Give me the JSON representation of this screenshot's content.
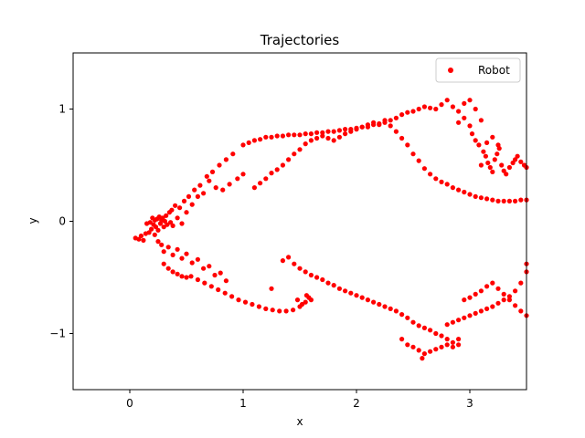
{
  "chart_data": {
    "type": "scatter",
    "title": "Trajectories",
    "xlabel": "x",
    "ylabel": "y",
    "xlim": [
      -0.5,
      3.5
    ],
    "ylim": [
      -1.5,
      1.5
    ],
    "x_ticks": [
      0,
      1,
      2,
      3
    ],
    "x_tick_labels": [
      "0",
      "1",
      "2",
      "3"
    ],
    "y_ticks": [
      -1,
      0,
      1
    ],
    "y_tick_labels": [
      "−1",
      "0",
      "1"
    ],
    "grid": false,
    "legend": {
      "position": "top-right",
      "entries": [
        "Robot"
      ]
    },
    "series": [
      {
        "name": "Robot",
        "color": "#ff0000",
        "marker": "circle",
        "points": [
          [
            0.05,
            -0.15
          ],
          [
            0.08,
            -0.16
          ],
          [
            0.1,
            -0.13
          ],
          [
            0.12,
            -0.17
          ],
          [
            0.14,
            -0.11
          ],
          [
            0.15,
            -0.02
          ],
          [
            0.17,
            -0.1
          ],
          [
            0.18,
            -0.01
          ],
          [
            0.19,
            -0.07
          ],
          [
            0.2,
            0.03
          ],
          [
            0.21,
            -0.03
          ],
          [
            0.22,
            0.01
          ],
          [
            0.23,
            -0.05
          ],
          [
            0.24,
            0.02
          ],
          [
            0.25,
            -0.08
          ],
          [
            0.26,
            0.04
          ],
          [
            0.27,
            -0.02
          ],
          [
            0.28,
            0.01
          ],
          [
            0.29,
            0.03
          ],
          [
            0.3,
            -0.05
          ],
          [
            0.31,
            0.0
          ],
          [
            0.32,
            0.05
          ],
          [
            0.33,
            -0.03
          ],
          [
            0.35,
            0.08
          ],
          [
            0.36,
            -0.01
          ],
          [
            0.37,
            0.1
          ],
          [
            0.38,
            -0.04
          ],
          [
            0.4,
            0.14
          ],
          [
            0.42,
            0.03
          ],
          [
            0.44,
            0.12
          ],
          [
            0.46,
            -0.02
          ],
          [
            0.48,
            0.18
          ],
          [
            0.5,
            0.08
          ],
          [
            0.52,
            0.22
          ],
          [
            0.55,
            0.15
          ],
          [
            0.57,
            0.28
          ],
          [
            0.6,
            0.22
          ],
          [
            0.62,
            0.32
          ],
          [
            0.65,
            0.25
          ],
          [
            0.68,
            0.4
          ],
          [
            0.7,
            0.36
          ],
          [
            0.73,
            0.44
          ],
          [
            0.76,
            0.3
          ],
          [
            0.79,
            0.5
          ],
          [
            0.82,
            0.28
          ],
          [
            0.85,
            0.55
          ],
          [
            0.88,
            0.33
          ],
          [
            0.91,
            0.6
          ],
          [
            0.95,
            0.38
          ],
          [
            1.0,
            0.42
          ],
          [
            0.22,
            -0.12
          ],
          [
            0.25,
            -0.18
          ],
          [
            0.28,
            -0.21
          ],
          [
            0.3,
            -0.27
          ],
          [
            0.34,
            -0.23
          ],
          [
            0.38,
            -0.3
          ],
          [
            0.42,
            -0.25
          ],
          [
            0.46,
            -0.33
          ],
          [
            0.5,
            -0.29
          ],
          [
            0.55,
            -0.37
          ],
          [
            0.6,
            -0.34
          ],
          [
            0.65,
            -0.42
          ],
          [
            0.7,
            -0.4
          ],
          [
            0.75,
            -0.48
          ],
          [
            0.8,
            -0.46
          ],
          [
            0.85,
            -0.53
          ],
          [
            0.3,
            -0.38
          ],
          [
            0.34,
            -0.42
          ],
          [
            0.38,
            -0.45
          ],
          [
            0.42,
            -0.47
          ],
          [
            0.46,
            -0.49
          ],
          [
            0.5,
            -0.5
          ],
          [
            0.54,
            -0.49
          ],
          [
            0.6,
            -0.52
          ],
          [
            0.66,
            -0.55
          ],
          [
            0.72,
            -0.58
          ],
          [
            0.78,
            -0.61
          ],
          [
            0.84,
            -0.64
          ],
          [
            0.9,
            -0.67
          ],
          [
            0.96,
            -0.7
          ],
          [
            1.02,
            -0.72
          ],
          [
            1.08,
            -0.74
          ],
          [
            1.14,
            -0.76
          ],
          [
            1.2,
            -0.78
          ],
          [
            1.26,
            -0.79
          ],
          [
            1.32,
            -0.8
          ],
          [
            1.38,
            -0.8
          ],
          [
            1.44,
            -0.79
          ],
          [
            1.5,
            -0.76
          ],
          [
            1.55,
            -0.72
          ],
          [
            1.58,
            -0.68
          ],
          [
            1.6,
            -0.7
          ],
          [
            1.52,
            -0.74
          ],
          [
            1.56,
            -0.66
          ],
          [
            1.48,
            -0.7
          ],
          [
            1.0,
            0.68
          ],
          [
            1.05,
            0.7
          ],
          [
            1.1,
            0.72
          ],
          [
            1.15,
            0.73
          ],
          [
            1.2,
            0.75
          ],
          [
            1.25,
            0.75
          ],
          [
            1.3,
            0.76
          ],
          [
            1.35,
            0.76
          ],
          [
            1.4,
            0.77
          ],
          [
            1.45,
            0.77
          ],
          [
            1.5,
            0.77
          ],
          [
            1.55,
            0.78
          ],
          [
            1.6,
            0.78
          ],
          [
            1.65,
            0.79
          ],
          [
            1.7,
            0.79
          ],
          [
            1.75,
            0.8
          ],
          [
            1.8,
            0.8
          ],
          [
            1.85,
            0.81
          ],
          [
            1.9,
            0.82
          ],
          [
            1.95,
            0.82
          ],
          [
            2.0,
            0.83
          ],
          [
            2.05,
            0.84
          ],
          [
            2.1,
            0.84
          ],
          [
            2.15,
            0.86
          ],
          [
            2.2,
            0.87
          ],
          [
            2.25,
            0.88
          ],
          [
            2.3,
            0.9
          ],
          [
            2.35,
            0.92
          ],
          [
            2.4,
            0.95
          ],
          [
            2.45,
            0.97
          ],
          [
            2.5,
            0.98
          ],
          [
            2.55,
            1.0
          ],
          [
            2.6,
            1.02
          ],
          [
            2.65,
            1.01
          ],
          [
            2.7,
            1.0
          ],
          [
            2.75,
            1.04
          ],
          [
            2.8,
            1.08
          ],
          [
            2.85,
            1.02
          ],
          [
            2.9,
            0.98
          ],
          [
            2.95,
            1.05
          ],
          [
            3.0,
            1.08
          ],
          [
            3.05,
            1.0
          ],
          [
            1.1,
            0.3
          ],
          [
            1.15,
            0.34
          ],
          [
            1.2,
            0.38
          ],
          [
            1.25,
            0.43
          ],
          [
            1.3,
            0.46
          ],
          [
            1.35,
            0.5
          ],
          [
            1.4,
            0.55
          ],
          [
            1.45,
            0.6
          ],
          [
            1.5,
            0.64
          ],
          [
            1.55,
            0.69
          ],
          [
            1.6,
            0.72
          ],
          [
            1.65,
            0.74
          ],
          [
            1.7,
            0.76
          ],
          [
            1.75,
            0.74
          ],
          [
            1.8,
            0.72
          ],
          [
            1.85,
            0.75
          ],
          [
            1.9,
            0.78
          ],
          [
            1.95,
            0.8
          ],
          [
            2.0,
            0.82
          ],
          [
            2.05,
            0.84
          ],
          [
            2.1,
            0.86
          ],
          [
            2.15,
            0.88
          ],
          [
            2.2,
            0.86
          ],
          [
            2.25,
            0.9
          ],
          [
            2.3,
            0.85
          ],
          [
            2.35,
            0.8
          ],
          [
            2.4,
            0.74
          ],
          [
            2.45,
            0.68
          ],
          [
            2.5,
            0.6
          ],
          [
            2.55,
            0.54
          ],
          [
            2.6,
            0.47
          ],
          [
            2.65,
            0.42
          ],
          [
            2.7,
            0.38
          ],
          [
            2.75,
            0.35
          ],
          [
            2.8,
            0.33
          ],
          [
            2.85,
            0.3
          ],
          [
            2.9,
            0.28
          ],
          [
            2.95,
            0.26
          ],
          [
            3.0,
            0.24
          ],
          [
            3.05,
            0.22
          ],
          [
            3.1,
            0.21
          ],
          [
            3.15,
            0.2
          ],
          [
            3.2,
            0.19
          ],
          [
            3.25,
            0.18
          ],
          [
            3.3,
            0.18
          ],
          [
            3.35,
            0.18
          ],
          [
            3.4,
            0.18
          ],
          [
            3.45,
            0.19
          ],
          [
            3.5,
            0.19
          ],
          [
            2.9,
            0.88
          ],
          [
            2.95,
            0.92
          ],
          [
            3.0,
            0.85
          ],
          [
            3.02,
            0.78
          ],
          [
            3.05,
            0.72
          ],
          [
            3.08,
            0.68
          ],
          [
            3.1,
            0.9
          ],
          [
            3.12,
            0.62
          ],
          [
            3.14,
            0.58
          ],
          [
            3.16,
            0.52
          ],
          [
            3.18,
            0.48
          ],
          [
            3.2,
            0.44
          ],
          [
            3.22,
            0.55
          ],
          [
            3.24,
            0.6
          ],
          [
            3.26,
            0.65
          ],
          [
            3.28,
            0.5
          ],
          [
            3.3,
            0.45
          ],
          [
            3.32,
            0.42
          ],
          [
            3.35,
            0.48
          ],
          [
            3.38,
            0.52
          ],
          [
            3.4,
            0.55
          ],
          [
            3.42,
            0.58
          ],
          [
            3.45,
            0.53
          ],
          [
            3.48,
            0.5
          ],
          [
            3.5,
            0.48
          ],
          [
            3.15,
            0.7
          ],
          [
            3.2,
            0.75
          ],
          [
            3.25,
            0.68
          ],
          [
            3.1,
            0.5
          ],
          [
            1.25,
            -0.6
          ],
          [
            1.35,
            -0.35
          ],
          [
            1.4,
            -0.32
          ],
          [
            1.45,
            -0.38
          ],
          [
            1.5,
            -0.42
          ],
          [
            1.55,
            -0.45
          ],
          [
            1.6,
            -0.48
          ],
          [
            1.65,
            -0.5
          ],
          [
            1.7,
            -0.52
          ],
          [
            1.75,
            -0.55
          ],
          [
            1.8,
            -0.57
          ],
          [
            1.85,
            -0.6
          ],
          [
            1.9,
            -0.62
          ],
          [
            1.95,
            -0.64
          ],
          [
            2.0,
            -0.66
          ],
          [
            2.05,
            -0.68
          ],
          [
            2.1,
            -0.7
          ],
          [
            2.15,
            -0.72
          ],
          [
            2.2,
            -0.74
          ],
          [
            2.25,
            -0.76
          ],
          [
            2.3,
            -0.78
          ],
          [
            2.35,
            -0.8
          ],
          [
            2.4,
            -0.83
          ],
          [
            2.45,
            -0.86
          ],
          [
            2.5,
            -0.9
          ],
          [
            2.55,
            -0.93
          ],
          [
            2.6,
            -0.95
          ],
          [
            2.65,
            -0.97
          ],
          [
            2.7,
            -1.0
          ],
          [
            2.75,
            -1.02
          ],
          [
            2.8,
            -1.05
          ],
          [
            2.85,
            -1.08
          ],
          [
            2.9,
            -1.05
          ],
          [
            2.4,
            -1.05
          ],
          [
            2.45,
            -1.1
          ],
          [
            2.5,
            -1.12
          ],
          [
            2.55,
            -1.15
          ],
          [
            2.6,
            -1.18
          ],
          [
            2.65,
            -1.16
          ],
          [
            2.7,
            -1.14
          ],
          [
            2.75,
            -1.12
          ],
          [
            2.8,
            -1.1
          ],
          [
            2.85,
            -1.12
          ],
          [
            2.9,
            -1.1
          ],
          [
            2.58,
            -1.22
          ],
          [
            2.8,
            -0.92
          ],
          [
            2.85,
            -0.9
          ],
          [
            2.9,
            -0.88
          ],
          [
            2.95,
            -0.86
          ],
          [
            3.0,
            -0.84
          ],
          [
            3.05,
            -0.82
          ],
          [
            3.1,
            -0.8
          ],
          [
            3.15,
            -0.78
          ],
          [
            3.2,
            -0.76
          ],
          [
            3.25,
            -0.73
          ],
          [
            3.3,
            -0.7
          ],
          [
            3.35,
            -0.67
          ],
          [
            3.4,
            -0.62
          ],
          [
            3.45,
            -0.55
          ],
          [
            3.5,
            -0.45
          ],
          [
            3.5,
            -0.38
          ],
          [
            2.95,
            -0.7
          ],
          [
            3.0,
            -0.68
          ],
          [
            3.05,
            -0.65
          ],
          [
            3.1,
            -0.62
          ],
          [
            3.15,
            -0.58
          ],
          [
            3.2,
            -0.55
          ],
          [
            3.25,
            -0.6
          ],
          [
            3.3,
            -0.65
          ],
          [
            3.35,
            -0.7
          ],
          [
            3.4,
            -0.75
          ],
          [
            3.45,
            -0.8
          ],
          [
            3.5,
            -0.84
          ]
        ]
      }
    ]
  }
}
